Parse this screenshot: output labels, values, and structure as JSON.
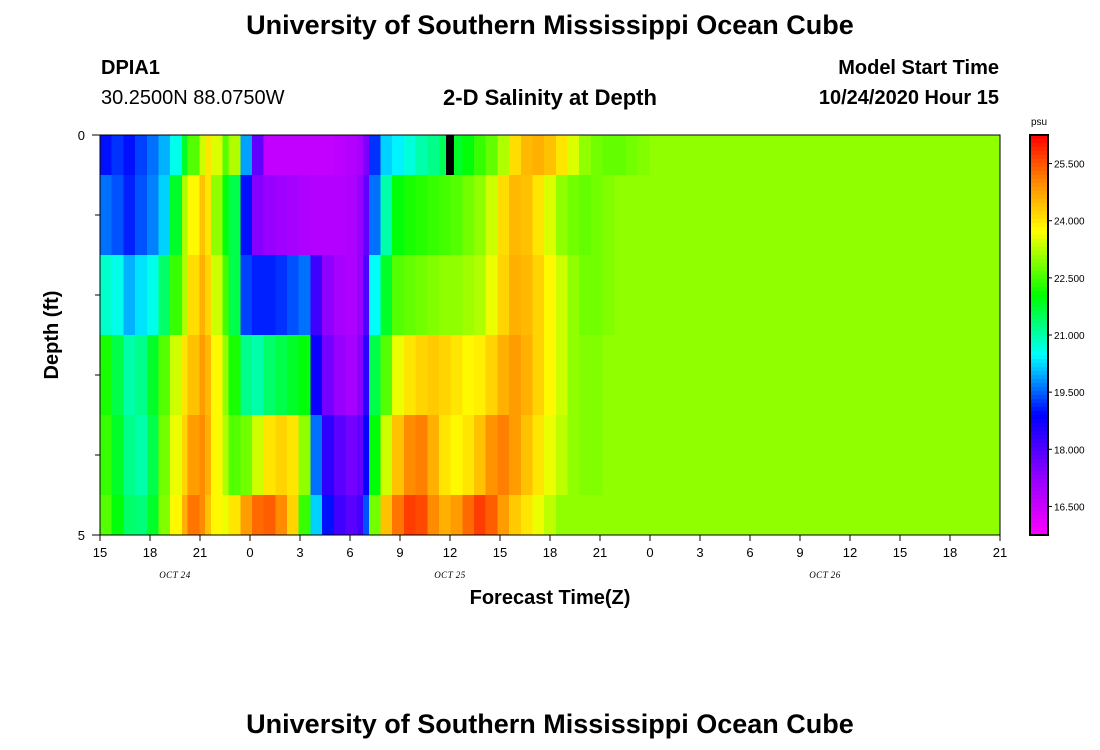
{
  "header": {
    "title": "University of Southern Mississippi Ocean Cube",
    "station_id": "DPIA1",
    "station_coords": "30.2500N 88.0750W",
    "plot_title": "2-D Salinity at Depth",
    "model_start_label": "Model Start Time",
    "model_start_value": "10/24/2020 Hour 15"
  },
  "footer": {
    "title": "University of Southern Mississippi Ocean Cube"
  },
  "chart_data": {
    "type": "heatmap",
    "title": "2-D Salinity at Depth",
    "xlabel": "Forecast Time(Z)",
    "ylabel": "Depth (ft)",
    "ylim": [
      0,
      5
    ],
    "x_tick_labels": [
      "15",
      "18",
      "21",
      "0",
      "3",
      "6",
      "9",
      "12",
      "15",
      "18",
      "21",
      "0",
      "3",
      "6",
      "9",
      "12",
      "15",
      "18",
      "21"
    ],
    "date_labels": [
      {
        "text": "OCT 24",
        "at_tick": 1.5
      },
      {
        "text": "OCT 25",
        "at_tick": 7
      },
      {
        "text": "OCT 26",
        "at_tick": 14.5
      }
    ],
    "y_tick_labels": [
      "0",
      "5"
    ],
    "unit": "psu",
    "colorbar_ticks": [
      "25.500",
      "24.000",
      "22.500",
      "21.000",
      "19.500",
      "18.000",
      "16.500"
    ],
    "colorbar_range": [
      15.75,
      26.25
    ],
    "colorscale": "rainbow (magenta-blue-cyan-green-yellow-orange-red)",
    "depth_layers": [
      "0-0.5",
      "0.5-1.5",
      "1.5-2.5",
      "2.5-3.5",
      "3.5-4.5",
      "4.5-5"
    ],
    "time_nodes": [
      0,
      2,
      4,
      6,
      8,
      10,
      12,
      14,
      15,
      17,
      18,
      19,
      21,
      22,
      24,
      26,
      28,
      30,
      32,
      34,
      36,
      38,
      40,
      42,
      44,
      45,
      46,
      48,
      50,
      52,
      54,
      56,
      58,
      60,
      62,
      64,
      66,
      68,
      70,
      72,
      74,
      76,
      78,
      80,
      82,
      84,
      86,
      88,
      90,
      92,
      94,
      96,
      98,
      100,
      102,
      104,
      106,
      108,
      110,
      112,
      114,
      116,
      118,
      120,
      122,
      124,
      126,
      128,
      130,
      132,
      134,
      136,
      138,
      140,
      142,
      144,
      146,
      148,
      150,
      152,
      154
    ],
    "salinity_rows": [
      [
        19.0,
        19.2,
        19.0,
        19.3,
        19.6,
        20.0,
        20.6,
        21.8,
        22.6,
        23.4,
        24.0,
        23.5,
        22.6,
        23.2,
        19.9,
        17.8,
        16.6,
        16.6,
        16.6,
        16.6,
        16.6,
        16.6,
        16.7,
        16.8,
        17.0,
        17.5,
        19.2,
        20.2,
        20.4,
        20.7,
        21.0,
        21.2,
        21.5,
        21.8,
        22.0,
        22.4,
        22.7,
        23.2,
        24.1,
        24.5,
        24.6,
        24.4,
        24.0,
        23.5,
        23.0,
        22.8,
        22.7,
        22.7,
        22.8,
        22.9,
        23.0,
        23.0,
        23.0,
        23.0,
        23.0,
        23.0,
        23.0,
        23.0,
        23.0,
        23.0,
        23.0,
        23.0,
        23.0,
        23.0,
        23.0,
        23.0,
        23.0,
        23.0,
        23.0,
        23.0,
        23.0,
        23.0,
        23.0,
        23.0,
        23.0,
        23.0,
        23.0,
        23.0,
        23.0,
        23.0,
        23.0
      ],
      [
        19.6,
        19.4,
        19.1,
        19.4,
        19.7,
        20.2,
        21.8,
        23.2,
        23.8,
        24.4,
        24.0,
        23.0,
        22.0,
        21.6,
        19.0,
        17.4,
        17.2,
        17.1,
        17.0,
        16.9,
        16.8,
        16.8,
        16.8,
        16.9,
        17.2,
        17.8,
        19.6,
        21.0,
        22.0,
        22.2,
        22.3,
        22.4,
        22.5,
        22.6,
        22.8,
        23.0,
        23.4,
        24.1,
        24.5,
        24.4,
        24.0,
        23.5,
        23.0,
        22.8,
        22.7,
        22.8,
        22.9,
        23.0,
        23.0,
        23.0,
        23.0,
        23.0,
        23.0,
        23.0,
        23.0,
        23.0,
        23.0,
        23.0,
        23.0,
        23.0,
        23.0,
        23.0,
        23.0,
        23.0,
        23.0,
        23.0,
        23.0,
        23.0,
        23.0,
        23.0,
        23.0,
        23.0,
        23.0,
        23.0,
        23.0,
        23.0,
        23.0,
        23.0,
        23.0,
        23.0,
        23.0
      ],
      [
        20.8,
        20.6,
        20.0,
        20.3,
        20.6,
        21.4,
        22.4,
        23.2,
        24.1,
        24.6,
        24.2,
        23.4,
        22.5,
        21.6,
        19.3,
        19.1,
        19.1,
        19.2,
        19.4,
        19.6,
        18.2,
        17.3,
        17.0,
        16.9,
        17.2,
        18.0,
        20.5,
        21.8,
        22.6,
        22.7,
        22.8,
        22.9,
        23.0,
        23.0,
        23.1,
        23.2,
        23.6,
        24.2,
        24.6,
        24.5,
        24.2,
        23.8,
        23.4,
        23.0,
        22.8,
        22.8,
        22.9,
        23.0,
        23.0,
        23.0,
        23.0,
        23.0,
        23.0,
        23.0,
        23.0,
        23.0,
        23.0,
        23.0,
        23.0,
        23.0,
        23.0,
        23.0,
        23.0,
        23.0,
        23.0,
        23.0,
        23.0,
        23.0,
        23.0,
        23.0,
        23.0,
        23.0,
        23.0,
        23.0,
        23.0,
        23.0,
        23.0,
        23.0,
        23.0,
        23.0,
        23.0
      ],
      [
        22.2,
        21.6,
        21.0,
        21.2,
        21.8,
        22.6,
        23.4,
        24.0,
        24.4,
        24.8,
        24.5,
        23.8,
        23.0,
        22.2,
        21.2,
        21.0,
        21.4,
        21.6,
        21.8,
        22.0,
        18.8,
        17.6,
        17.2,
        17.0,
        17.4,
        18.4,
        21.6,
        22.6,
        23.6,
        24.0,
        24.2,
        24.3,
        24.2,
        24.0,
        23.8,
        23.9,
        24.2,
        24.6,
        24.8,
        24.6,
        24.2,
        23.8,
        23.4,
        23.0,
        22.9,
        22.9,
        23.0,
        23.0,
        23.0,
        23.0,
        23.0,
        23.0,
        23.0,
        23.0,
        23.0,
        23.0,
        23.0,
        23.0,
        23.0,
        23.0,
        23.0,
        23.0,
        23.0,
        23.0,
        23.0,
        23.0,
        23.0,
        23.0,
        23.0,
        23.0,
        23.0,
        23.0,
        23.0,
        23.0,
        23.0,
        23.0,
        23.0,
        23.0,
        23.0,
        23.0,
        23.0
      ],
      [
        22.4,
        21.8,
        21.2,
        21.0,
        21.6,
        22.8,
        23.6,
        24.2,
        24.8,
        25.0,
        24.6,
        23.8,
        23.2,
        22.6,
        22.8,
        23.4,
        24.0,
        24.2,
        24.0,
        23.0,
        19.6,
        18.4,
        17.9,
        17.6,
        17.8,
        18.8,
        22.0,
        23.4,
        24.4,
        25.0,
        25.1,
        24.6,
        24.0,
        23.8,
        24.0,
        24.4,
        24.9,
        25.1,
        24.8,
        24.4,
        24.0,
        23.6,
        23.3,
        23.0,
        22.9,
        22.9,
        23.0,
        23.0,
        23.0,
        23.0,
        23.0,
        23.0,
        23.0,
        23.0,
        23.0,
        23.0,
        23.0,
        23.0,
        23.0,
        23.0,
        23.0,
        23.0,
        23.0,
        23.0,
        23.0,
        23.0,
        23.0,
        23.0,
        23.0,
        23.0,
        23.0,
        23.0,
        23.0,
        23.0,
        23.0,
        23.0,
        23.0,
        23.0,
        23.0,
        23.0,
        23.0
      ],
      [
        22.6,
        22.0,
        21.4,
        21.3,
        21.8,
        22.9,
        23.8,
        24.6,
        25.2,
        25.0,
        24.4,
        23.8,
        23.6,
        24.0,
        24.8,
        25.3,
        25.4,
        25.0,
        24.2,
        22.4,
        20.2,
        19.0,
        18.2,
        17.9,
        18.2,
        19.4,
        22.8,
        24.4,
        25.2,
        25.7,
        25.6,
        25.0,
        24.6,
        24.8,
        25.3,
        25.7,
        25.4,
        24.8,
        24.3,
        24.0,
        23.6,
        23.3,
        23.0,
        23.0,
        23.0,
        23.0,
        23.0,
        23.0,
        23.0,
        23.0,
        23.0,
        23.0,
        23.0,
        23.0,
        23.0,
        23.0,
        23.0,
        23.0,
        23.0,
        23.0,
        23.0,
        23.0,
        23.0,
        23.0,
        23.0,
        23.0,
        23.0,
        23.0,
        23.0,
        23.0,
        23.0,
        23.0,
        23.0,
        23.0,
        23.0,
        23.0,
        23.0,
        23.0,
        23.0,
        23.0,
        23.0
      ]
    ]
  }
}
